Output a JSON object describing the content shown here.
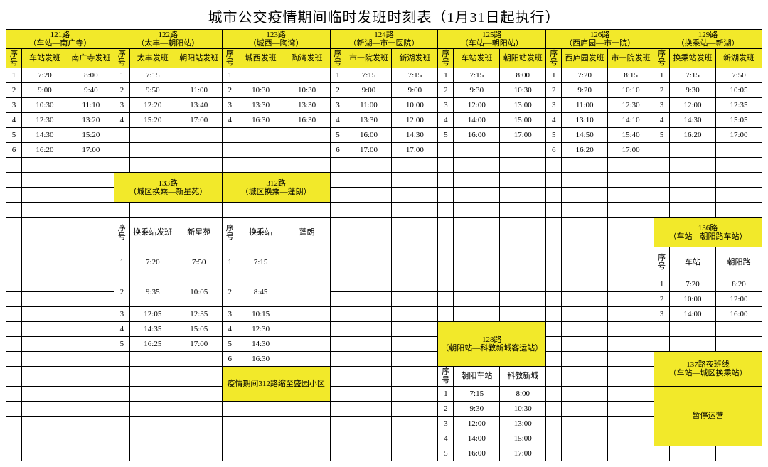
{
  "title": "城市公交疫情期间临时发班时刻表（1月31日起执行）",
  "colors": {
    "header_bg": "#f2e92a",
    "border": "#000000",
    "bg": "#ffffff"
  },
  "routes": {
    "r121": {
      "name": "121路",
      "desc": "（车站—南广寺）",
      "cols": [
        "序号",
        "车站发班",
        "南广寺发班"
      ],
      "rows": [
        [
          "1",
          "7:20",
          "8:00"
        ],
        [
          "2",
          "9:00",
          "9:40"
        ],
        [
          "3",
          "10:30",
          "11:10"
        ],
        [
          "4",
          "12:30",
          "13:20"
        ],
        [
          "5",
          "14:30",
          "15:20"
        ],
        [
          "6",
          "16:20",
          "17:00"
        ]
      ]
    },
    "r122": {
      "name": "122路",
      "desc": "（太丰—朝阳站）",
      "cols": [
        "序号",
        "太丰发班",
        "朝阳站发班"
      ],
      "rows": [
        [
          "1",
          "7:15",
          ""
        ],
        [
          "2",
          "9:50",
          "11:00"
        ],
        [
          "3",
          "12:20",
          "13:40"
        ],
        [
          "4",
          "15:20",
          "17:00"
        ]
      ]
    },
    "r123": {
      "name": "123路",
      "desc": "（城西—陶湾）",
      "cols": [
        "序号",
        "城西发班",
        "陶湾发班"
      ],
      "rows": [
        [
          "1",
          "",
          ""
        ],
        [
          "2",
          "10:30",
          "10:30"
        ],
        [
          "3",
          "13:30",
          "13:30"
        ],
        [
          "4",
          "16:30",
          "16:30"
        ]
      ]
    },
    "r124": {
      "name": "124路",
      "desc": "（新湖—市一医院）",
      "cols": [
        "序号",
        "市一院发班",
        "新湖发班"
      ],
      "rows": [
        [
          "1",
          "7:15",
          "7:15"
        ],
        [
          "2",
          "9:00",
          "9:00"
        ],
        [
          "3",
          "11:00",
          "10:00"
        ],
        [
          "4",
          "13:30",
          "12:00"
        ],
        [
          "5",
          "16:00",
          "14:30"
        ],
        [
          "6",
          "17:00",
          "17:00"
        ]
      ]
    },
    "r125": {
      "name": "125路",
      "desc": "（车站—朝阳站）",
      "cols": [
        "序号",
        "车站发班",
        "朝阳站发班"
      ],
      "rows": [
        [
          "1",
          "7:15",
          "8:00"
        ],
        [
          "2",
          "9:30",
          "10:30"
        ],
        [
          "3",
          "12:00",
          "13:00"
        ],
        [
          "4",
          "14:00",
          "15:00"
        ],
        [
          "5",
          "16:00",
          "17:00"
        ]
      ]
    },
    "r126": {
      "name": "126路",
      "desc": "（西庐园—市一院）",
      "cols": [
        "序号",
        "西庐园发班",
        "市一院发班"
      ],
      "rows": [
        [
          "1",
          "7:20",
          "8:15"
        ],
        [
          "2",
          "9:20",
          "10:10"
        ],
        [
          "3",
          "11:00",
          "12:30"
        ],
        [
          "4",
          "13:10",
          "14:10"
        ],
        [
          "5",
          "14:50",
          "15:40"
        ],
        [
          "6",
          "16:20",
          "17:00"
        ]
      ]
    },
    "r129": {
      "name": "129路",
      "desc": "（换乘站—新湖）",
      "cols": [
        "序号",
        "换乘站发班",
        "新湖发班"
      ],
      "rows": [
        [
          "1",
          "7:15",
          "7:50"
        ],
        [
          "2",
          "9:30",
          "10:05"
        ],
        [
          "3",
          "12:00",
          "12:35"
        ],
        [
          "4",
          "14:30",
          "15:05"
        ],
        [
          "5",
          "16:20",
          "17:00"
        ]
      ]
    },
    "r133": {
      "name": "133路",
      "desc": "（城区换乘—新星苑）",
      "cols": [
        "序号",
        "换乘站发班",
        "新星苑"
      ],
      "rows": [
        [
          "1",
          "7:20",
          "7:50"
        ],
        [
          "2",
          "9:35",
          "10:05"
        ],
        [
          "3",
          "12:05",
          "12:35"
        ],
        [
          "4",
          "14:35",
          "15:05"
        ],
        [
          "5",
          "16:25",
          "17:00"
        ]
      ]
    },
    "r312": {
      "name": "312路",
      "desc": "（城区换乘—蓬朗）",
      "cols": [
        "序号",
        "换乘站",
        "蓬朗"
      ],
      "rows": [
        [
          "1",
          "7:15",
          ""
        ],
        [
          "2",
          "8:45",
          ""
        ],
        [
          "3",
          "10:15",
          ""
        ],
        [
          "4",
          "12:30",
          ""
        ],
        [
          "5",
          "14:30",
          ""
        ],
        [
          "6",
          "16:30",
          ""
        ]
      ],
      "note": "疫情期间312路缩至盛园小区"
    },
    "r128": {
      "name": "128路",
      "desc": "（朝阳站—科教新城客运站）",
      "cols": [
        "序号",
        "朝阳车站",
        "科教新城"
      ],
      "rows": [
        [
          "1",
          "7:15",
          "8:00"
        ],
        [
          "2",
          "9:30",
          "10:30"
        ],
        [
          "3",
          "12:00",
          "13:00"
        ],
        [
          "4",
          "14:00",
          "15:00"
        ],
        [
          "5",
          "16:00",
          "17:00"
        ]
      ]
    },
    "r136": {
      "name": "136路",
      "desc": "（车站—朝阳路车站）",
      "cols": [
        "序号",
        "车站",
        "朝阳路"
      ],
      "rows": [
        [
          "1",
          "7:20",
          "8:20"
        ],
        [
          "2",
          "10:00",
          "12:00"
        ],
        [
          "3",
          "14:00",
          "16:00"
        ]
      ]
    },
    "r137": {
      "name": "137路夜班线",
      "desc": "（车站—城区换乘站）",
      "note": "暂停运营"
    }
  }
}
